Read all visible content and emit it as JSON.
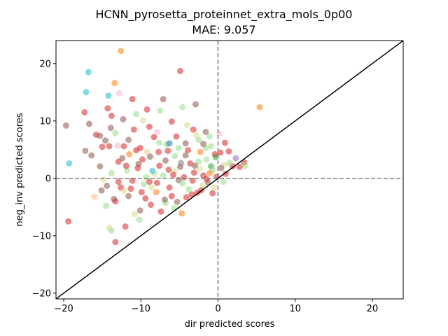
{
  "chart_data": {
    "type": "scatter",
    "title": "HCNN_pyrosetta_proteinnet_extra_mols_0p00",
    "subtitle": "MAE: 9.057",
    "xlabel": "dir predicted scores",
    "ylabel": "neg_inv predicted scores",
    "xlim": [
      -21,
      24
    ],
    "ylim": [
      -21,
      24
    ],
    "xticks": [
      -20,
      -10,
      0,
      10,
      20
    ],
    "yticks": [
      -20,
      -10,
      0,
      10,
      20
    ],
    "xtick_labels": [
      "−20",
      "−10",
      "0",
      "10",
      "20"
    ],
    "ytick_labels": [
      "−20",
      "−10",
      "0",
      "10",
      "20"
    ],
    "grid": false,
    "reference_lines": {
      "diagonal": "y = x",
      "horizontal": 0,
      "vertical": 0
    },
    "colors": {
      "red": "#d62728",
      "brown": "#8c564b",
      "lightgreen": "#98df8a",
      "orange": "#ff7f0e",
      "cyan": "#17becf",
      "olive": "#dbdb8d",
      "green": "#2ca02c",
      "purple": "#9467bd",
      "pink": "#f7b6d2",
      "peach": "#ffbb78",
      "gray": "#7f7f7f",
      "blue": "#1f77b4"
    },
    "points": [
      {
        "x": -12.6,
        "y": 22.2,
        "c": "orange"
      },
      {
        "x": -16.8,
        "y": 18.5,
        "c": "cyan"
      },
      {
        "x": -17.1,
        "y": 15.0,
        "c": "cyan"
      },
      {
        "x": -14.2,
        "y": 14.4,
        "c": "cyan"
      },
      {
        "x": -13.4,
        "y": 16.6,
        "c": "orange"
      },
      {
        "x": -12.8,
        "y": 14.8,
        "c": "pink"
      },
      {
        "x": -4.9,
        "y": 18.7,
        "c": "red"
      },
      {
        "x": 5.4,
        "y": 12.4,
        "c": "orange"
      },
      {
        "x": -19.7,
        "y": 9.2,
        "c": "brown"
      },
      {
        "x": -19.3,
        "y": 2.6,
        "c": "cyan"
      },
      {
        "x": -19.4,
        "y": -7.5,
        "c": "red"
      },
      {
        "x": -17.3,
        "y": 11.5,
        "c": "red"
      },
      {
        "x": -16.7,
        "y": 9.5,
        "c": "brown"
      },
      {
        "x": -15.8,
        "y": 7.6,
        "c": "red"
      },
      {
        "x": -14.3,
        "y": 12.2,
        "c": "red"
      },
      {
        "x": -13.8,
        "y": 10.9,
        "c": "red"
      },
      {
        "x": -11.1,
        "y": 13.8,
        "c": "red"
      },
      {
        "x": -7.1,
        "y": 13.8,
        "c": "brown"
      },
      {
        "x": -7.5,
        "y": 11.8,
        "c": "lightgreen"
      },
      {
        "x": -2.9,
        "y": 12.9,
        "c": "brown"
      },
      {
        "x": -4.6,
        "y": 12.4,
        "c": "lightgreen"
      },
      {
        "x": -1.1,
        "y": 7.3,
        "c": "lightgreen"
      },
      {
        "x": 0.2,
        "y": 7.8,
        "c": "pink"
      },
      {
        "x": -15.3,
        "y": 7.4,
        "c": "brown"
      },
      {
        "x": -15.0,
        "y": 5.5,
        "c": "red"
      },
      {
        "x": -14.1,
        "y": 5.6,
        "c": "red"
      },
      {
        "x": -13.3,
        "y": 7.9,
        "c": "lightgreen"
      },
      {
        "x": -12.2,
        "y": 5.6,
        "c": "red"
      },
      {
        "x": -11.6,
        "y": 6.7,
        "c": "brown"
      },
      {
        "x": -10.9,
        "y": 8.5,
        "c": "red"
      },
      {
        "x": -10.1,
        "y": 5.3,
        "c": "red"
      },
      {
        "x": -9.2,
        "y": 4.6,
        "c": "olive"
      },
      {
        "x": -8.3,
        "y": 7.2,
        "c": "red"
      },
      {
        "x": -7.6,
        "y": 6.2,
        "c": "lightgreen"
      },
      {
        "x": -6.7,
        "y": 5.9,
        "c": "lightgreen"
      },
      {
        "x": -6.3,
        "y": 6.1,
        "c": "blue"
      },
      {
        "x": -5.4,
        "y": 7.3,
        "c": "red"
      },
      {
        "x": -4.2,
        "y": 6.1,
        "c": "brown"
      },
      {
        "x": -3.2,
        "y": 8.5,
        "c": "red"
      },
      {
        "x": -2.5,
        "y": 6.7,
        "c": "lightgreen"
      },
      {
        "x": -1.6,
        "y": 5.3,
        "c": "lightgreen"
      },
      {
        "x": -0.4,
        "y": 4.2,
        "c": "red"
      },
      {
        "x": 0.3,
        "y": 4.5,
        "c": "red"
      },
      {
        "x": 1.4,
        "y": 4.7,
        "c": "red"
      },
      {
        "x": 2.3,
        "y": 3.5,
        "c": "purple"
      },
      {
        "x": 3.4,
        "y": 2.8,
        "c": "red"
      },
      {
        "x": 3.5,
        "y": 2.2,
        "c": "lightgreen"
      },
      {
        "x": 0.8,
        "y": 2.4,
        "c": "olive"
      },
      {
        "x": -0.9,
        "y": 2.1,
        "c": "green"
      },
      {
        "x": -15.1,
        "y": -2.1,
        "c": "brown"
      },
      {
        "x": -14.4,
        "y": -1.3,
        "c": "brown"
      },
      {
        "x": -13.5,
        "y": -3.6,
        "c": "brown"
      },
      {
        "x": -12.6,
        "y": -1.6,
        "c": "red"
      },
      {
        "x": -11.8,
        "y": 1.4,
        "c": "lightgreen"
      },
      {
        "x": -11.1,
        "y": -0.4,
        "c": "red"
      },
      {
        "x": -10.3,
        "y": 2.5,
        "c": "brown"
      },
      {
        "x": -9.6,
        "y": -1.0,
        "c": "lightgreen"
      },
      {
        "x": -8.9,
        "y": -0.6,
        "c": "red"
      },
      {
        "x": -8.2,
        "y": 0.8,
        "c": "olive"
      },
      {
        "x": -7.6,
        "y": 2.2,
        "c": "red"
      },
      {
        "x": -6.8,
        "y": 3.1,
        "c": "brown"
      },
      {
        "x": -6.3,
        "y": -1.6,
        "c": "red"
      },
      {
        "x": -5.6,
        "y": 1.2,
        "c": "olive"
      },
      {
        "x": -4.9,
        "y": 2.0,
        "c": "brown"
      },
      {
        "x": -4.4,
        "y": 0.2,
        "c": "red"
      },
      {
        "x": -3.8,
        "y": -1.9,
        "c": "lightgreen"
      },
      {
        "x": -3.1,
        "y": 1.0,
        "c": "red"
      },
      {
        "x": -2.5,
        "y": 2.9,
        "c": "lightgreen"
      },
      {
        "x": -1.9,
        "y": 0.5,
        "c": "red"
      },
      {
        "x": -1.3,
        "y": -0.7,
        "c": "brown"
      },
      {
        "x": -0.7,
        "y": 1.4,
        "c": "lightgreen"
      },
      {
        "x": -0.2,
        "y": 0.3,
        "c": "red"
      },
      {
        "x": 0.4,
        "y": 1.8,
        "c": "brown"
      },
      {
        "x": 1.0,
        "y": 0.8,
        "c": "red"
      },
      {
        "x": -14.5,
        "y": -4.8,
        "c": "lightgreen"
      },
      {
        "x": -13.3,
        "y": -4.0,
        "c": "red"
      },
      {
        "x": -12.2,
        "y": -2.2,
        "c": "olive"
      },
      {
        "x": -11.6,
        "y": -3.1,
        "c": "brown"
      },
      {
        "x": -10.8,
        "y": -6.2,
        "c": "olive"
      },
      {
        "x": -10.1,
        "y": -5.6,
        "c": "brown"
      },
      {
        "x": -9.4,
        "y": -3.5,
        "c": "red"
      },
      {
        "x": -8.7,
        "y": -4.6,
        "c": "red"
      },
      {
        "x": -8.0,
        "y": -2.4,
        "c": "orange"
      },
      {
        "x": -7.4,
        "y": -5.8,
        "c": "red"
      },
      {
        "x": -6.8,
        "y": -4.3,
        "c": "lightgreen"
      },
      {
        "x": -6.0,
        "y": -3.1,
        "c": "red"
      },
      {
        "x": -5.3,
        "y": -4.1,
        "c": "brown"
      },
      {
        "x": -4.7,
        "y": -6.1,
        "c": "orange"
      },
      {
        "x": -4.1,
        "y": -3.3,
        "c": "red"
      },
      {
        "x": -3.4,
        "y": -2.8,
        "c": "red"
      },
      {
        "x": -2.7,
        "y": -2.5,
        "c": "red"
      },
      {
        "x": -2.0,
        "y": -1.2,
        "c": "olive"
      },
      {
        "x": -0.7,
        "y": -2.6,
        "c": "red"
      },
      {
        "x": -16.0,
        "y": -3.2,
        "c": "peach"
      },
      {
        "x": -14.1,
        "y": -8.6,
        "c": "olive"
      },
      {
        "x": -13.8,
        "y": -9.1,
        "c": "lightgreen"
      },
      {
        "x": -13.3,
        "y": -11.1,
        "c": "red"
      },
      {
        "x": -12.0,
        "y": -8.4,
        "c": "red"
      },
      {
        "x": -10.2,
        "y": -7.2,
        "c": "lightgreen"
      },
      {
        "x": -8.5,
        "y": 1.3,
        "c": "cyan"
      },
      {
        "x": -5.8,
        "y": 0.6,
        "c": "red"
      },
      {
        "x": -4.2,
        "y": 4.0,
        "c": "brown"
      },
      {
        "x": -2.3,
        "y": 4.6,
        "c": "orange"
      },
      {
        "x": -1.5,
        "y": 3.3,
        "c": "lightgreen"
      },
      {
        "x": -0.3,
        "y": 3.7,
        "c": "green"
      },
      {
        "x": 1.9,
        "y": 2.1,
        "c": "red"
      },
      {
        "x": -3.6,
        "y": 2.6,
        "c": "red"
      },
      {
        "x": -9.8,
        "y": 3.3,
        "c": "red"
      },
      {
        "x": -11.5,
        "y": 4.2,
        "c": "orange"
      },
      {
        "x": -12.9,
        "y": 2.9,
        "c": "red"
      },
      {
        "x": -15.3,
        "y": 2.1,
        "c": "brown"
      },
      {
        "x": -16.4,
        "y": 4.0,
        "c": "brown"
      },
      {
        "x": -17.2,
        "y": 4.8,
        "c": "brown"
      },
      {
        "x": -10.6,
        "y": 11.2,
        "c": "lightgreen"
      },
      {
        "x": -9.7,
        "y": 10.1,
        "c": "olive"
      },
      {
        "x": -8.9,
        "y": 9.0,
        "c": "red"
      },
      {
        "x": -7.9,
        "y": 8.1,
        "c": "pink"
      },
      {
        "x": -6.5,
        "y": 4.8,
        "c": "red"
      },
      {
        "x": -5.1,
        "y": 5.3,
        "c": "lightgreen"
      },
      {
        "x": -3.9,
        "y": 4.9,
        "c": "red"
      },
      {
        "x": -2.8,
        "y": 7.5,
        "c": "olive"
      },
      {
        "x": -1.9,
        "y": 6.0,
        "c": "brown"
      },
      {
        "x": -0.9,
        "y": 5.6,
        "c": "lightgreen"
      },
      {
        "x": -12.4,
        "y": 3.5,
        "c": "brown"
      },
      {
        "x": -11.9,
        "y": 2.2,
        "c": "red"
      },
      {
        "x": -10.4,
        "y": 1.8,
        "c": "red"
      },
      {
        "x": -9.3,
        "y": 0.2,
        "c": "lightgreen"
      },
      {
        "x": -8.6,
        "y": -1.6,
        "c": "olive"
      },
      {
        "x": -7.9,
        "y": -0.8,
        "c": "red"
      },
      {
        "x": -7.1,
        "y": 0.5,
        "c": "lightgreen"
      },
      {
        "x": -6.4,
        "y": 1.5,
        "c": "red"
      },
      {
        "x": -5.1,
        "y": -0.3,
        "c": "brown"
      },
      {
        "x": -4.6,
        "y": -0.9,
        "c": "lightgreen"
      },
      {
        "x": -3.3,
        "y": -0.4,
        "c": "red"
      },
      {
        "x": -2.4,
        "y": 1.7,
        "c": "olive"
      },
      {
        "x": -1.5,
        "y": -0.1,
        "c": "red"
      },
      {
        "x": -0.5,
        "y": -1.6,
        "c": "olive"
      },
      {
        "x": 0.7,
        "y": -0.6,
        "c": "lightgreen"
      },
      {
        "x": 1.5,
        "y": 2.7,
        "c": "lightgreen"
      },
      {
        "x": 2.8,
        "y": 2.0,
        "c": "red"
      },
      {
        "x": -6.9,
        "y": -3.7,
        "c": "brown"
      },
      {
        "x": -5.7,
        "y": -5.2,
        "c": "lightgreen"
      },
      {
        "x": -9.9,
        "y": -2.4,
        "c": "red"
      },
      {
        "x": -12.9,
        "y": -0.6,
        "c": "red"
      },
      {
        "x": -14.8,
        "y": -0.2,
        "c": "olive"
      },
      {
        "x": -13.8,
        "y": 0.9,
        "c": "lightgreen"
      },
      {
        "x": -11.3,
        "y": -1.8,
        "c": "red"
      },
      {
        "x": -2.2,
        "y": -2.1,
        "c": "red"
      },
      {
        "x": -1.1,
        "y": 0.9,
        "c": "orange"
      },
      {
        "x": -3.0,
        "y": 2.2,
        "c": "brown"
      },
      {
        "x": -4.8,
        "y": 2.7,
        "c": "gray"
      },
      {
        "x": -5.6,
        "y": 3.9,
        "c": "lightgreen"
      },
      {
        "x": -7.7,
        "y": 4.6,
        "c": "red"
      },
      {
        "x": -8.8,
        "y": 3.8,
        "c": "brown"
      },
      {
        "x": -10.6,
        "y": 4.9,
        "c": "red"
      },
      {
        "x": -13.0,
        "y": 5.7,
        "c": "pink"
      },
      {
        "x": -14.6,
        "y": 6.6,
        "c": "brown"
      },
      {
        "x": -13.9,
        "y": 8.8,
        "c": "brown"
      },
      {
        "x": -12.3,
        "y": 10.3,
        "c": "brown"
      },
      {
        "x": -9.2,
        "y": 12.0,
        "c": "red"
      },
      {
        "x": -6.0,
        "y": 9.9,
        "c": "red"
      },
      {
        "x": -4.0,
        "y": 9.3,
        "c": "olive"
      },
      {
        "x": -1.6,
        "y": 8.1,
        "c": "brown"
      },
      {
        "x": 0.9,
        "y": 6.2,
        "c": "red"
      }
    ]
  }
}
